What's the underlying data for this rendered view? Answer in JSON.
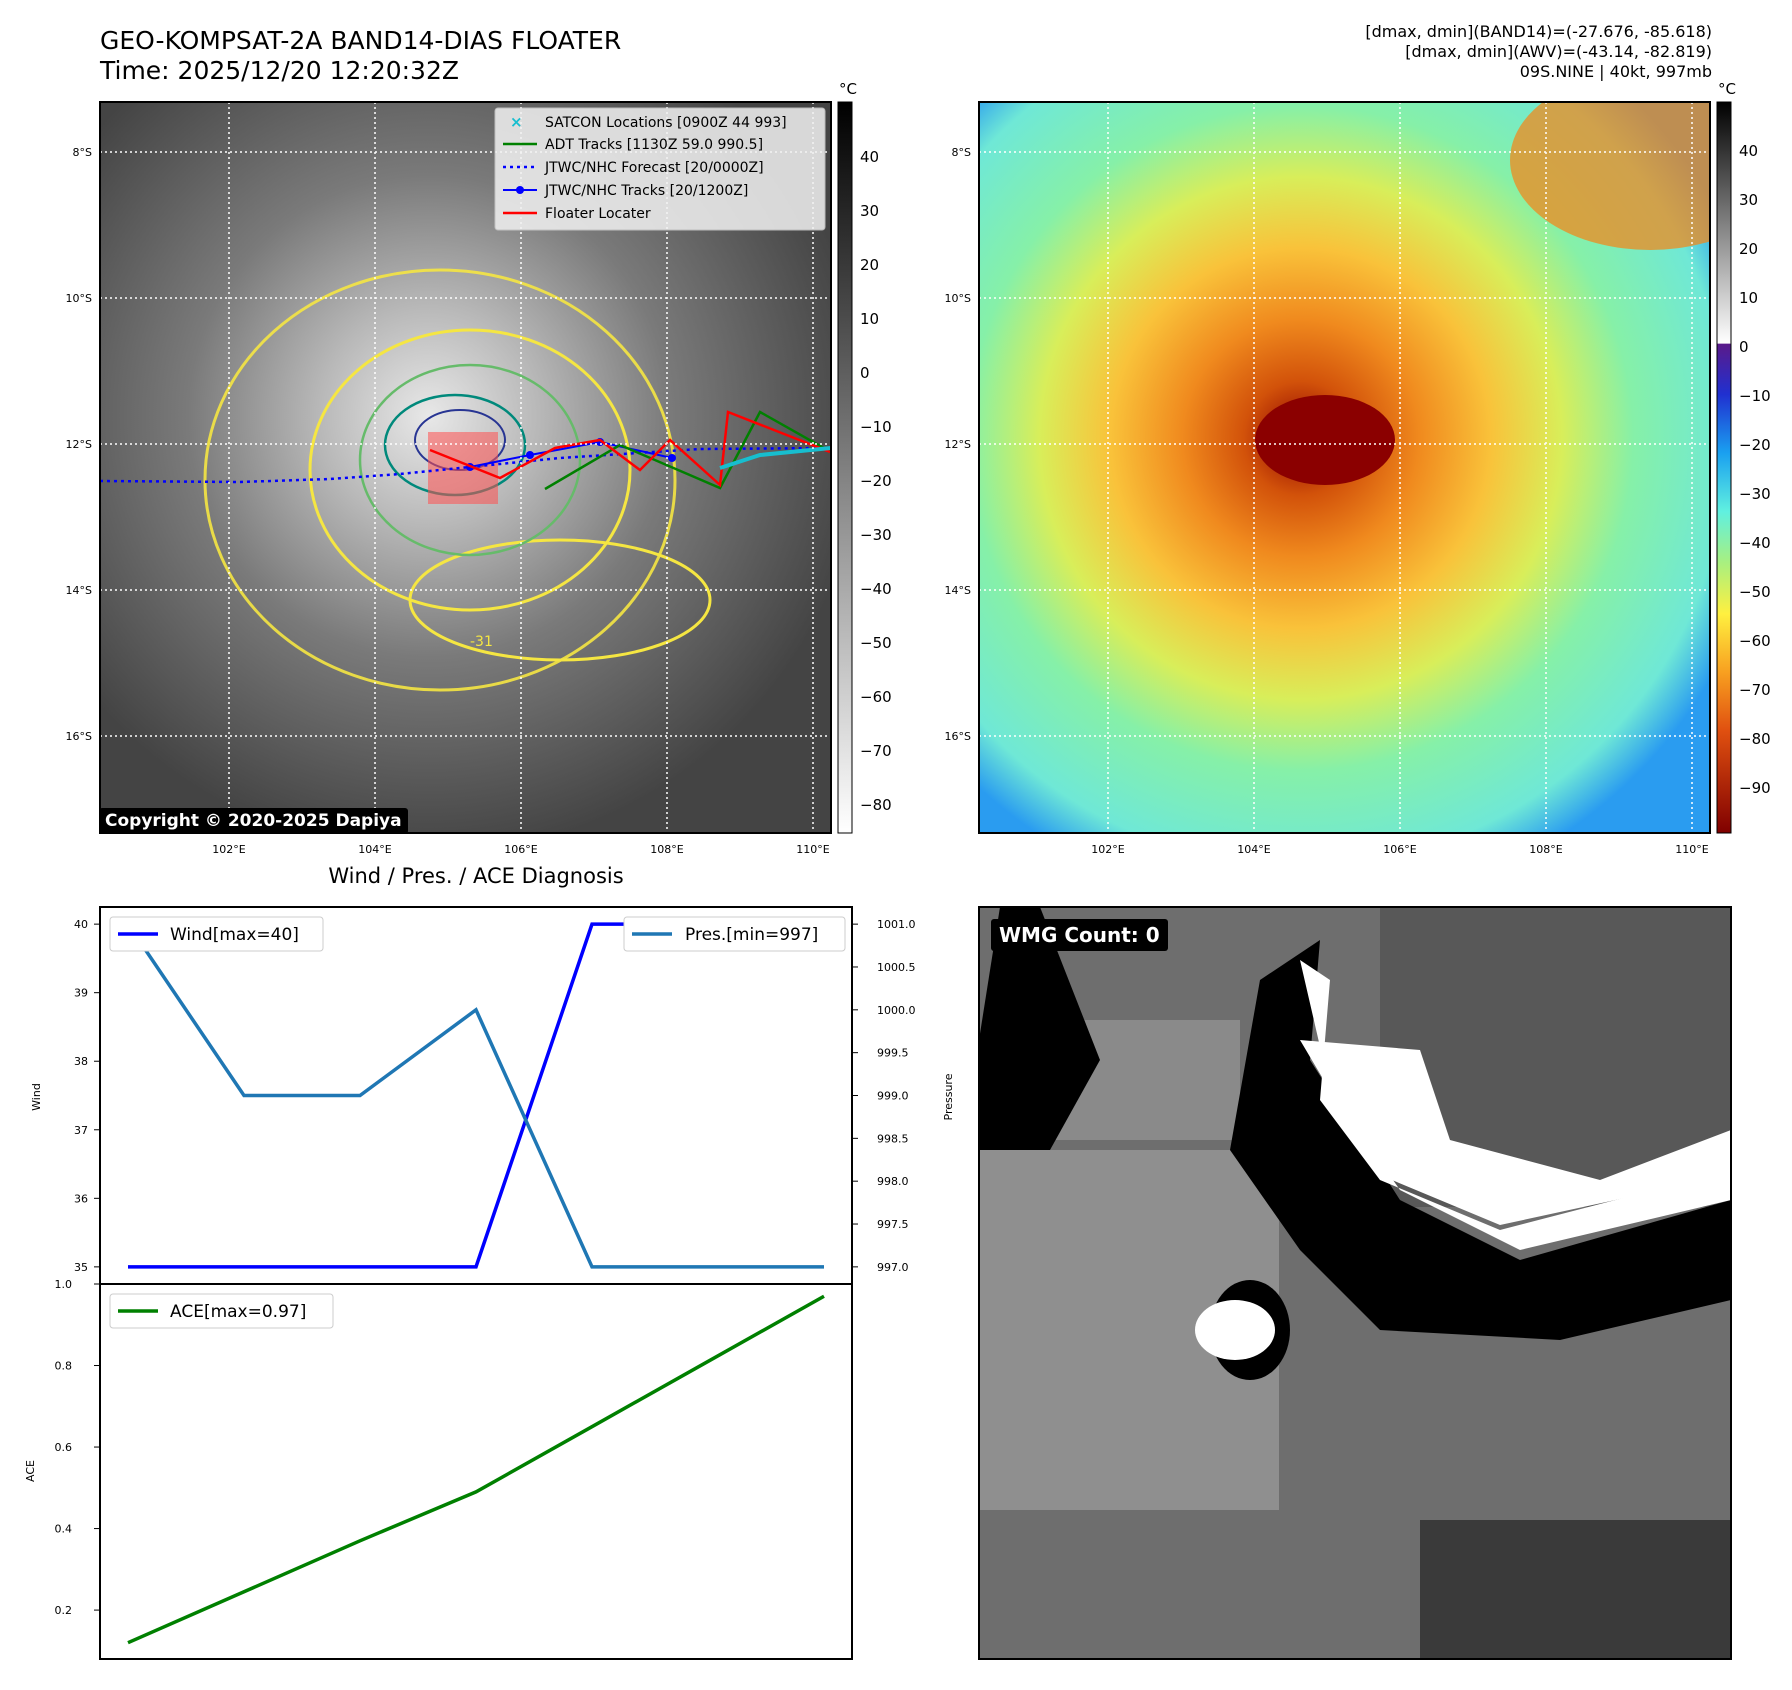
{
  "header": {
    "title_line1": "GEO-KOMPSAT-2A BAND14-DIAS FLOATER",
    "title_line2": "Time: 2025/12/20 12:20:32Z",
    "stats_line1": "[dmax, dmin](BAND14)=(-27.676, -85.618)",
    "stats_line2": "[dmax, dmin](AWV)=(-43.14, -82.819)",
    "stats_line3": "09S.NINE | 40kt, 997mb"
  },
  "map_common": {
    "lat_ticks": [
      "8°S",
      "10°S",
      "12°S",
      "14°S",
      "16°S"
    ],
    "lon_ticks": [
      "102°E",
      "104°E",
      "106°E",
      "108°E",
      "110°E"
    ]
  },
  "ir_panel": {
    "copyright": "Copyright © 2020-2025 Dapiya",
    "colorbar_unit": "°C",
    "colorbar_ticks": [
      "40",
      "30",
      "20",
      "10",
      "0",
      "−10",
      "−20",
      "−30",
      "−40",
      "−50",
      "−60",
      "−70",
      "−80"
    ],
    "legend": [
      {
        "label": "SATCON Locations [0900Z 44 993]",
        "color": "#17becf",
        "style": "x-marker"
      },
      {
        "label": "ADT Tracks [1130Z 59.0 990.5]",
        "color": "#008000",
        "style": "solid"
      },
      {
        "label": "JTWC/NHC Forecast [20/0000Z]",
        "color": "#0000ff",
        "style": "dotted"
      },
      {
        "label": "JTWC/NHC Tracks [20/1200Z]",
        "color": "#0000ff",
        "style": "dot-line"
      },
      {
        "label": "Floater Locater",
        "color": "#ff0000",
        "style": "solid"
      }
    ],
    "contour_label": "-31"
  },
  "awv_panel": {
    "colorbar_unit": "°C",
    "colorbar_ticks": [
      "40",
      "30",
      "20",
      "10",
      "0",
      "−10",
      "−20",
      "−30",
      "−40",
      "−50",
      "−60",
      "−70",
      "−80",
      "−90"
    ]
  },
  "chart_data": [
    {
      "type": "line",
      "title": "Wind / Pres. / ACE Diagnosis",
      "x": [
        0,
        1,
        2,
        3,
        4,
        5,
        6
      ],
      "series": [
        {
          "name": "Wind[max=40]",
          "axis": "left",
          "color": "#0000ff",
          "values": [
            35,
            35,
            35,
            35,
            40,
            40,
            40
          ]
        },
        {
          "name": "Pres.[min=997]",
          "axis": "right",
          "color": "#1f77b4",
          "values": [
            1001.0,
            999.0,
            999.0,
            1000.0,
            997.0,
            997.0,
            997.0
          ]
        }
      ],
      "ylabel": "Wind",
      "ylabel_right": "Pressure",
      "ylim": [
        34.75,
        40.25
      ],
      "ylim_right": [
        996.8,
        1001.2
      ],
      "yticks": [
        "35",
        "36",
        "37",
        "38",
        "39",
        "40"
      ],
      "yticks_right": [
        "997.0",
        "997.5",
        "998.0",
        "998.5",
        "999.0",
        "999.5",
        "1000.0",
        "1000.5",
        "1001.0"
      ],
      "legend": [
        "upper-left",
        "upper-right"
      ],
      "grid": false
    },
    {
      "type": "line",
      "x": [
        0,
        1,
        2,
        3,
        4,
        5,
        6
      ],
      "series": [
        {
          "name": "ACE[max=0.97]",
          "color": "#008000",
          "values": [
            0.12,
            0.245,
            0.37,
            0.49,
            0.65,
            0.81,
            0.97
          ]
        }
      ],
      "ylabel": "ACE",
      "ylim": [
        0.08,
        1.0
      ],
      "yticks": [
        "0.2",
        "0.4",
        "0.6",
        "0.8",
        "1.0"
      ],
      "legend": "upper-left",
      "grid": false
    }
  ],
  "wmg_panel": {
    "label": "WMG Count: 0"
  }
}
